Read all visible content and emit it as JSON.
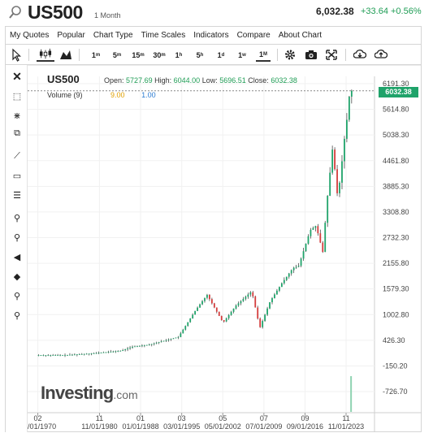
{
  "header": {
    "symbol": "US500",
    "period": "1 Month",
    "price": "6,032.38",
    "change": "+33.64 +0.56%"
  },
  "menu": [
    "My Quotes",
    "Popular",
    "Chart Type",
    "Time Scales",
    "Indicators",
    "Compare",
    "About Chart"
  ],
  "toolbar": {
    "timeframes": [
      {
        "label": "1",
        "unit": "m"
      },
      {
        "label": "5",
        "unit": "m"
      },
      {
        "label": "15",
        "unit": "m"
      },
      {
        "label": "30",
        "unit": "m"
      },
      {
        "label": "1",
        "unit": "h"
      },
      {
        "label": "5",
        "unit": "h"
      },
      {
        "label": "1",
        "unit": "d"
      },
      {
        "label": "1",
        "unit": "w"
      },
      {
        "label": "1",
        "unit": "M"
      }
    ],
    "selected_timeframe": "1M"
  },
  "legend": {
    "symbol": "US500",
    "open_label": "Open:",
    "open": "5727.69",
    "high_label": "High:",
    "high": "6044.00",
    "low_label": "Low:",
    "low": "5696.51",
    "close_label": "Close:",
    "close": "6032.38",
    "volume_label": "Volume (9)",
    "volume_value": "9.00",
    "volume_ma": "1.00"
  },
  "last_price_tag": "6032.38",
  "watermark": {
    "brand": "Investing",
    "domain": ".com"
  },
  "colors": {
    "up": "#1fa36a",
    "down": "#d43c3c",
    "accent": "#1f9d55",
    "volume": "#2b7bd1"
  },
  "chart_data": {
    "type": "line",
    "y_ticks": [
      "6191.30",
      "5614.80",
      "5038.30",
      "4461.80",
      "3885.30",
      "3308.80",
      "2732.30",
      "2155.80",
      "1579.30",
      "1002.80",
      "426.30",
      "-150.20",
      "-726.70"
    ],
    "ylim": [
      -1000,
      6400
    ],
    "x_ticks_top": [
      "02",
      "11",
      "01",
      "03",
      "05",
      "07",
      "09",
      "11"
    ],
    "x_ticks_bottom": [
      "02/01/1970",
      "11/01/1980",
      "01/01/1988",
      "03/01/1995",
      "05/01/2002",
      "07/01/2009",
      "09/01/2016",
      "11/01/2023"
    ],
    "x": [
      1970,
      1975,
      1980,
      1985,
      1987,
      1990,
      1995,
      1998,
      2000,
      2002.8,
      2005,
      2007.8,
      2009.2,
      2011,
      2013,
      2015,
      2016,
      2018,
      2019,
      2020.2,
      2020.8,
      2021.9,
      2022.8,
      2023.5,
      2024,
      2024.5,
      2024.9
    ],
    "values": [
      90,
      90,
      130,
      190,
      280,
      330,
      500,
      1100,
      1450,
      820,
      1200,
      1530,
      700,
      1300,
      1700,
      2050,
      2100,
      2900,
      3000,
      2400,
      3400,
      4760,
      3600,
      4400,
      5000,
      5500,
      6032.38
    ],
    "series": [
      {
        "name": "US500",
        "last": 6032.38
      }
    ]
  }
}
